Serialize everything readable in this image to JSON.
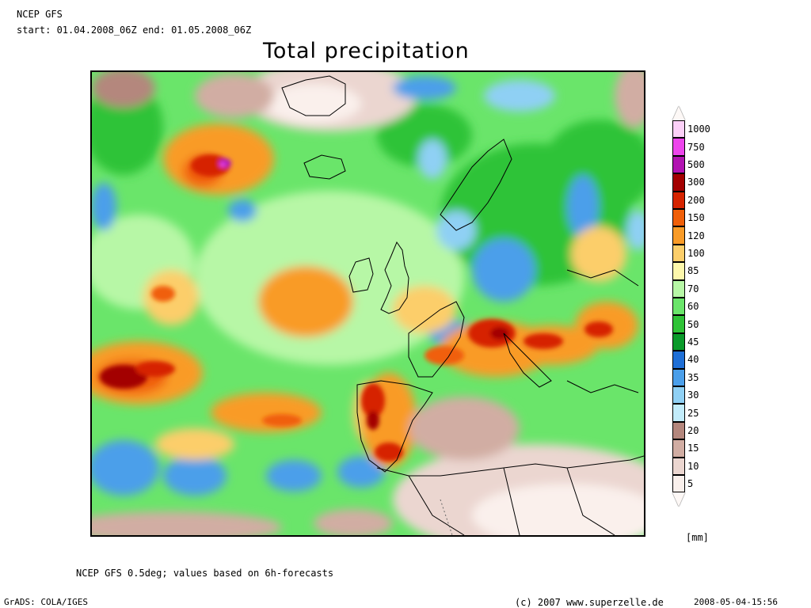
{
  "header": {
    "model": "NCEP GFS",
    "period": "start: 01.04.2008_06Z end: 01.05.2008_06Z",
    "title": "Total precipitation"
  },
  "colorbar": {
    "unit": "[mm]",
    "levels": [
      {
        "label": "1000",
        "color": "#fbd0f7"
      },
      {
        "label": "750",
        "color": "#ed45ec"
      },
      {
        "label": "500",
        "color": "#b213b2"
      },
      {
        "label": "300",
        "color": "#a30000"
      },
      {
        "label": "200",
        "color": "#d62400"
      },
      {
        "label": "150",
        "color": "#f05f08"
      },
      {
        "label": "120",
        "color": "#f99b27"
      },
      {
        "label": "100",
        "color": "#fcce6a"
      },
      {
        "label": "85",
        "color": "#fdf7ab"
      },
      {
        "label": "70",
        "color": "#b7f7a6"
      },
      {
        "label": "60",
        "color": "#6ae56a"
      },
      {
        "label": "50",
        "color": "#2fc337"
      },
      {
        "label": "45",
        "color": "#0a9a2a"
      },
      {
        "label": "40",
        "color": "#1f6fd6"
      },
      {
        "label": "35",
        "color": "#4b9fea"
      },
      {
        "label": "30",
        "color": "#8fd0f4"
      },
      {
        "label": "25",
        "color": "#c2ecfb"
      },
      {
        "label": "20",
        "color": "#b4877d"
      },
      {
        "label": "15",
        "color": "#d1ada3"
      },
      {
        "label": "10",
        "color": "#ebd6d0"
      },
      {
        "label": "5",
        "color": "#faf0ec"
      }
    ],
    "top_cap_color": "#fbe3f8",
    "bottom_cap_color": "#fdf8f6"
  },
  "footer": {
    "note": "NCEP GFS 0.5deg; values based on 6h-forecasts",
    "software": "GrADS: COLA/IGES",
    "copyright": "(c) 2007 www.superzelle.de",
    "timestamp": "2008-05-04-15:56"
  }
}
